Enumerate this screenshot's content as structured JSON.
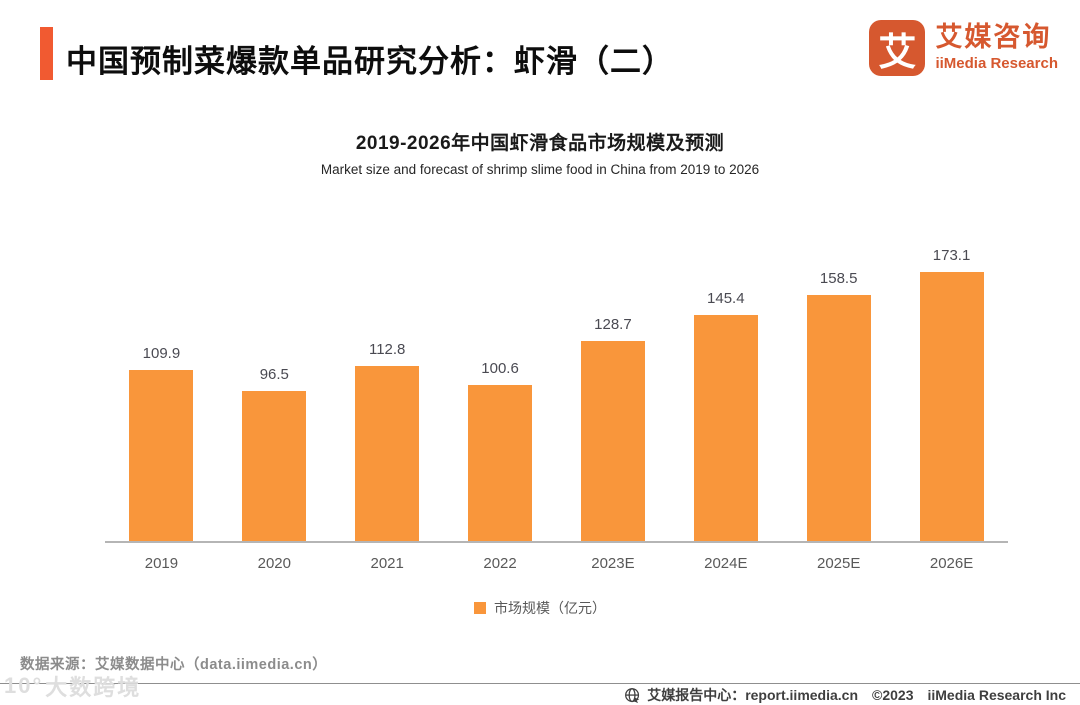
{
  "header": {
    "title": "中国预制菜爆款单品研究分析：虾滑（二）",
    "accent_color": "#F15A31",
    "logo": {
      "icon_char": "艾",
      "name_cn": "艾媒咨询",
      "name_en": "iiMedia Research",
      "color": "#D6582F"
    }
  },
  "chart": {
    "title": "2019-2026年中国虾滑食品市场规模及预测",
    "subtitle": "Market size and forecast of shrimp slime food in China from 2019 to 2026",
    "legend_label": "市场规模（亿元）",
    "bar_color": "#F9963B"
  },
  "chart_data": {
    "type": "bar",
    "title": "2019-2026年中国虾滑食品市场规模及预测",
    "subtitle": "Market size and forecast of shrimp slime food in China from 2019 to 2026",
    "categories": [
      "2019",
      "2020",
      "2021",
      "2022",
      "2023E",
      "2024E",
      "2025E",
      "2026E"
    ],
    "values": [
      109.9,
      96.5,
      112.8,
      100.6,
      128.7,
      145.4,
      158.5,
      173.1
    ],
    "series_name": "市场规模（亿元）",
    "ylabel": "",
    "xlabel": "",
    "ylim": [
      0,
      190
    ],
    "grid": false,
    "data_labels": true,
    "legend_position": "bottom",
    "bar_color": "#F9963B"
  },
  "source": "数据来源：艾媒数据中心（data.iimedia.cn）",
  "watermark": {
    "logo_glyph": "10°",
    "text": "大数跨境"
  },
  "footer": {
    "report_center": "艾媒报告中心：report.iimedia.cn",
    "copyright": "©2023",
    "company": "iiMedia Research  Inc"
  }
}
